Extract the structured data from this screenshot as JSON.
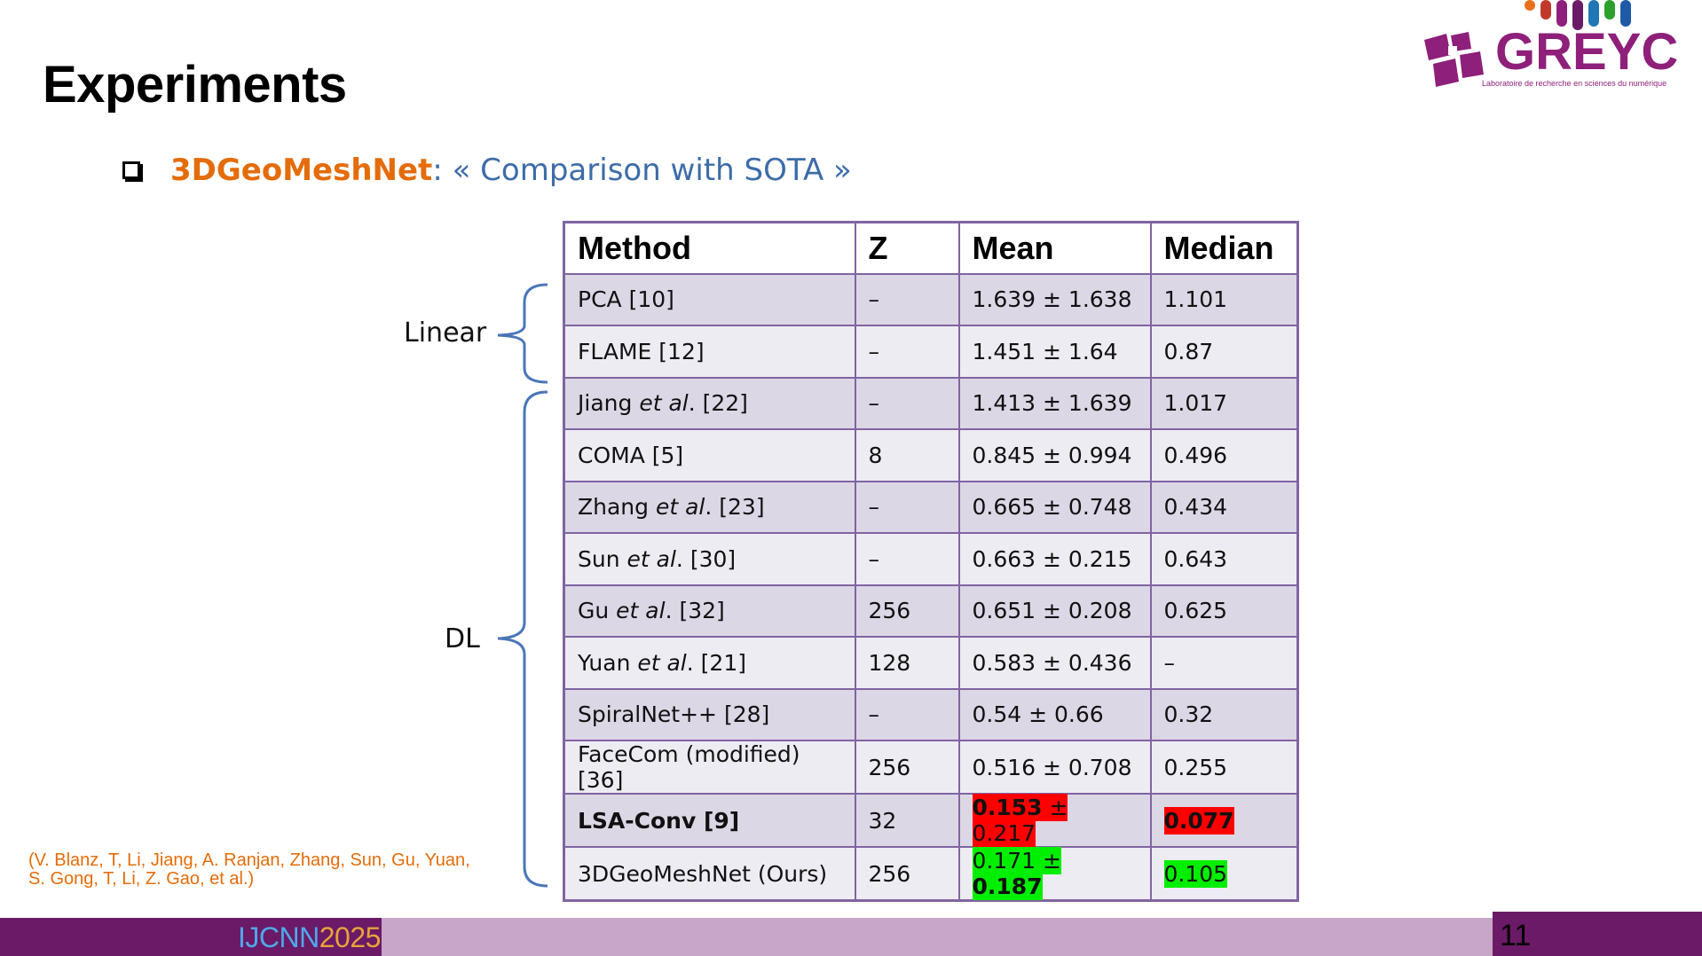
{
  "slide": {
    "title": "Experiments",
    "bullet": {
      "strong": "3DGeoMeshNet",
      "rest": ": « Comparison with SOTA »"
    },
    "logo": {
      "name": "GREYC",
      "tagline": "Laboratoire de recherche en sciences du numérique"
    },
    "groups": {
      "linear": "Linear",
      "dl": "DL"
    },
    "references": "(V. Blanz, T, Li, Jiang,  A. Ranjan, Zhang, Sun, Gu, Yuan, S. Gong, T, Li, Z. Gao, et al.)",
    "footer": {
      "conf_a": "IJCNN",
      "conf_b": "2025",
      "page": "11"
    },
    "colors": {
      "purple_dark": "#6a1a66",
      "purple_light": "#c8a6c9",
      "table_border": "#8064a2",
      "highlight_red": "#ff0000",
      "highlight_green": "#00ee00",
      "orange": "#e46c0a",
      "blue": "#3d6ca8"
    }
  },
  "table": {
    "headers": [
      "Method",
      "Z",
      "Mean",
      "Median"
    ],
    "rows": [
      {
        "method": "PCA [10]",
        "z": "–",
        "mean": "1.639 ± 1.638",
        "median": "1.101"
      },
      {
        "method": "FLAME [12]",
        "z": "–",
        "mean": "1.451 ± 1.64",
        "median": "0.87"
      },
      {
        "method_pre": "Jiang ",
        "method_em": "et al",
        "method_post": ". [22]",
        "z": "–",
        "mean": "1.413 ± 1.639",
        "median": "1.017"
      },
      {
        "method": "COMA [5]",
        "z": "8",
        "mean": "0.845 ± 0.994",
        "median": "0.496"
      },
      {
        "method_pre": "Zhang ",
        "method_em": "et al",
        "method_post": ". [23]",
        "z": "–",
        "mean": "0.665 ± 0.748",
        "median": "0.434"
      },
      {
        "method_pre": "Sun ",
        "method_em": "et al",
        "method_post": ". [30]",
        "z": "–",
        "mean": "0.663 ± 0.215",
        "median": "0.643"
      },
      {
        "method_pre": "Gu ",
        "method_em": "et al",
        "method_post": ". [32]",
        "z": "256",
        "mean": "0.651 ± 0.208",
        "median": "0.625"
      },
      {
        "method_pre": "Yuan ",
        "method_em": "et al",
        "method_post": ". [21]",
        "z": "128",
        "mean": "0.583 ± 0.436",
        "median": "–"
      },
      {
        "method": "SpiralNet++ [28]",
        "z": "–",
        "mean": "0.54 ± 0.66",
        "median": "0.32"
      },
      {
        "method": "FaceCom (modified) [36]",
        "z": "256",
        "mean": "0.516 ± 0.708",
        "median": "0.255"
      },
      {
        "method": "LSA-Conv [9]",
        "z": "32",
        "mean_a": "0.153",
        "mean_sep": " ± ",
        "mean_b": "0.217",
        "median": "0.077"
      },
      {
        "method": "3DGeoMeshNet (Ours)",
        "z": "256",
        "mean_a": "0.171",
        "mean_sep": " ± ",
        "mean_b": "0.187",
        "median": "0.105"
      }
    ]
  }
}
